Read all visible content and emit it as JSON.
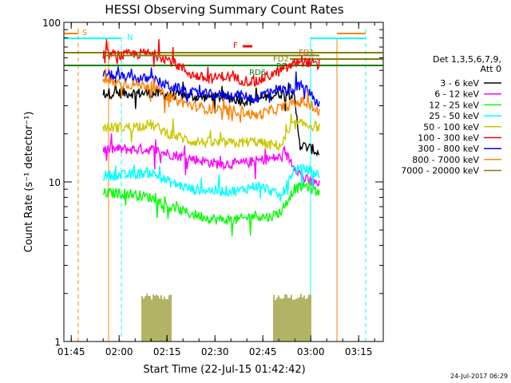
{
  "chart_data": {
    "type": "line",
    "title": "HESSI Observing Summary Count Rates",
    "xlabel": "Start Time (22-Jul-15 01:42:42)",
    "ylabel": "Count Rate (s⁻¹ detector⁻¹)",
    "x_unit": "minutes since 01:42:42",
    "xlim": [
      0,
      100
    ],
    "ylim": [
      1,
      100
    ],
    "yscale": "log",
    "x_ticks": [
      {
        "label": "01:45",
        "value": 2.3
      },
      {
        "label": "02:00",
        "value": 17.3
      },
      {
        "label": "02:15",
        "value": 32.3
      },
      {
        "label": "02:30",
        "value": 47.3
      },
      {
        "label": "02:45",
        "value": 62.3
      },
      {
        "label": "03:00",
        "value": 77.3
      },
      {
        "label": "03:15",
        "value": 92.3
      }
    ],
    "y_ticks": [
      {
        "label": "1",
        "value": 1
      },
      {
        "label": "10",
        "value": 10
      },
      {
        "label": "100",
        "value": 100
      }
    ],
    "legend": {
      "position": "right",
      "header_line1": "Det 1,3,5,6,7,9,",
      "header_line2": "Att 0",
      "entries": [
        {
          "label": "3 - 6 keV",
          "color": "#000000"
        },
        {
          "label": "6 - 12 keV",
          "color": "#ff00ff"
        },
        {
          "label": "12 - 25 keV",
          "color": "#00ff00"
        },
        {
          "label": "25 - 50 keV",
          "color": "#00ffff"
        },
        {
          "label": "50 - 100 keV",
          "color": "#c8c800"
        },
        {
          "label": "100 - 300 keV",
          "color": "#ff0000"
        },
        {
          "label": "300 - 800 keV",
          "color": "#0000ff"
        },
        {
          "label": "800 - 7000 keV",
          "color": "#ff8000"
        },
        {
          "label": "7000 - 20000 keV",
          "color": "#808000"
        }
      ]
    },
    "series": [
      {
        "name": "3 - 6 keV",
        "color": "#000000",
        "x": [
          12.3,
          20,
          27,
          35,
          42,
          50,
          58,
          63,
          68,
          72,
          74,
          78,
          80
        ],
        "y": [
          36,
          36,
          36,
          35,
          34,
          34,
          32,
          34,
          36,
          35,
          17,
          16,
          15
        ]
      },
      {
        "name": "6 - 12 keV",
        "color": "#ff00ff",
        "x": [
          12.3,
          20,
          27,
          33,
          40,
          48,
          55,
          60,
          65,
          70,
          75,
          80
        ],
        "y": [
          16,
          16,
          16,
          15,
          14,
          13,
          13,
          13.5,
          14,
          14.5,
          10.5,
          9.5
        ]
      },
      {
        "name": "12 - 25 keV",
        "color": "#00ff00",
        "x": [
          12.3,
          20,
          27,
          33,
          40,
          48,
          55,
          60,
          64,
          68,
          72,
          76,
          80
        ],
        "y": [
          8.5,
          8.5,
          8,
          7,
          6.3,
          5.8,
          5.8,
          6.2,
          6,
          6.5,
          9,
          9.5,
          8.5
        ]
      },
      {
        "name": "25 - 50 keV",
        "color": "#00ffff",
        "x": [
          12.3,
          20,
          27,
          33,
          40,
          48,
          55,
          60,
          64,
          68,
          72,
          76,
          80
        ],
        "y": [
          11,
          11,
          11.5,
          10,
          9,
          8.8,
          8.8,
          9.5,
          9,
          8,
          12,
          12,
          11
        ]
      },
      {
        "name": "50 - 100 keV",
        "color": "#c8c800",
        "x": [
          12.3,
          20,
          27,
          33,
          40,
          48,
          55,
          60,
          64,
          68,
          72,
          76,
          80
        ],
        "y": [
          22,
          22,
          23,
          20,
          18,
          17.5,
          17.5,
          18,
          17,
          17,
          23,
          23,
          22
        ]
      },
      {
        "name": "100 - 300 keV",
        "color": "#ff0000",
        "x": [
          12.3,
          18,
          25,
          30,
          35,
          40,
          45,
          50,
          55,
          60,
          65,
          70,
          74,
          78,
          80
        ],
        "y": [
          63,
          62,
          64,
          62,
          55,
          47,
          44,
          46,
          44,
          42,
          47,
          52,
          58,
          55,
          52
        ]
      },
      {
        "name": "300 - 800 keV",
        "color": "#0000ff",
        "x": [
          12.3,
          20,
          27,
          33,
          40,
          48,
          55,
          60,
          65,
          70,
          75,
          80
        ],
        "y": [
          47,
          45,
          44,
          40,
          36,
          35,
          35,
          33,
          38,
          38,
          40,
          30
        ]
      },
      {
        "name": "800 - 7000 keV",
        "color": "#ff8000",
        "x": [
          12.3,
          20,
          27,
          33,
          40,
          48,
          55,
          60,
          65,
          70,
          75,
          80
        ],
        "y": [
          43,
          41,
          40,
          34,
          30,
          28,
          28,
          26,
          28,
          30,
          32,
          27
        ]
      },
      {
        "name": "7000 - 20000 keV",
        "color": "#808000",
        "x": [
          12.3,
          80
        ],
        "y": [
          62,
          62
        ]
      }
    ],
    "flag_labels": [
      {
        "text": "S",
        "color": "#ff8000"
      },
      {
        "text": "N",
        "color": "#00ffff"
      },
      {
        "text": "F",
        "color": "#ff0000"
      },
      {
        "text": "FD1",
        "color": "#c86400"
      },
      {
        "text": "FD2",
        "color": "#808000"
      },
      {
        "text": "RD6",
        "color": "#008000"
      },
      {
        "text": "RD4",
        "color": "#008000"
      }
    ],
    "footer_date": "24-Jul-2017 06:29"
  }
}
